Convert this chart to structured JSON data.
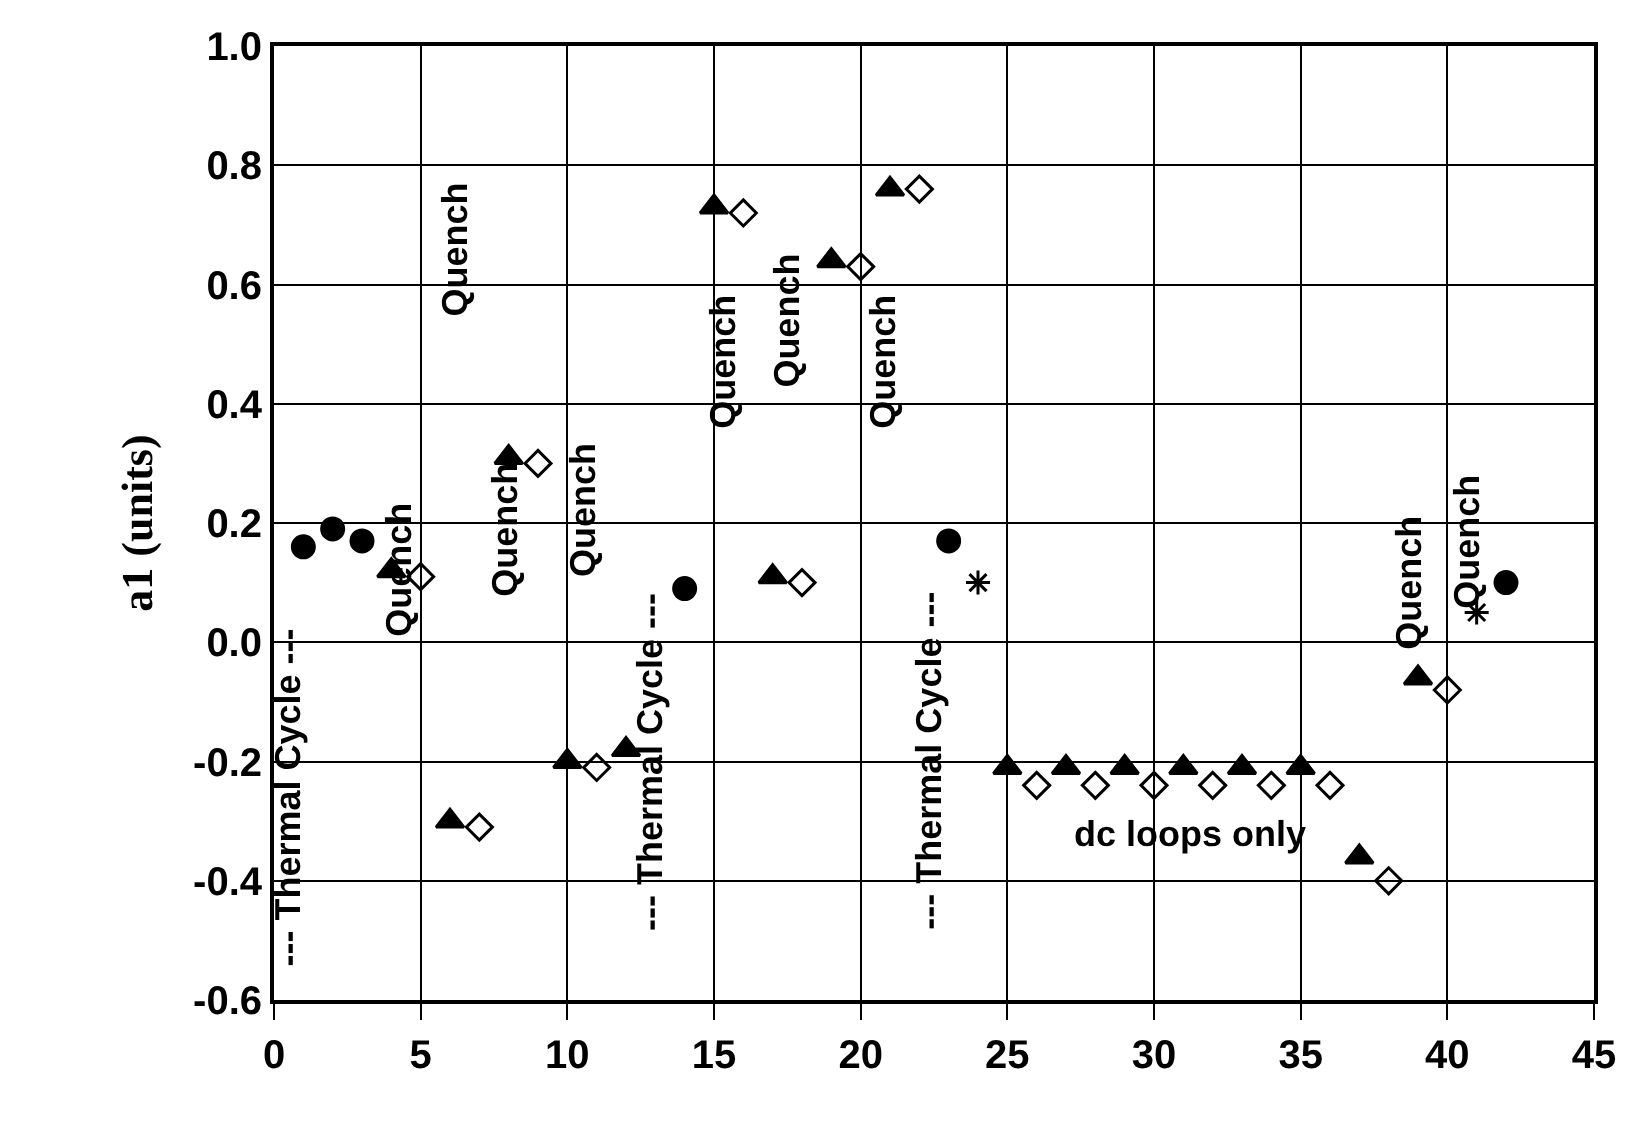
{
  "chart_data": {
    "type": "scatter",
    "ylabel": "a1 (units)",
    "xlim": [
      0,
      45
    ],
    "xticks": [
      0,
      5,
      10,
      15,
      20,
      25,
      30,
      35,
      40,
      45
    ],
    "ylim": [
      -0.6,
      1.0
    ],
    "yticks": [
      {
        "value": -0.6,
        "label": "-0.6"
      },
      {
        "value": -0.4,
        "label": "-0.4"
      },
      {
        "value": -0.2,
        "label": "-0.2"
      },
      {
        "value": 0,
        "label": "0.0"
      },
      {
        "value": 0.2,
        "label": "0.2"
      },
      {
        "value": 0.4,
        "label": "0.4"
      },
      {
        "value": 0.6,
        "label": "0.6"
      },
      {
        "value": 0.8,
        "label": "0.8"
      },
      {
        "value": 1.0,
        "label": "1.0"
      }
    ],
    "grid": true,
    "series": [
      {
        "marker": "circle",
        "color": "#000000",
        "x": [
          1,
          2,
          3,
          14,
          23,
          42
        ],
        "values": [
          0.16,
          0.19,
          0.17,
          0.09,
          0.17,
          0.1
        ]
      },
      {
        "marker": "triangle",
        "color": "#000000",
        "x": [
          4,
          6,
          8,
          10,
          12,
          15,
          17,
          19,
          21,
          25,
          27,
          29,
          31,
          33,
          35,
          37,
          39
        ],
        "values": [
          0.12,
          -0.3,
          0.31,
          -0.2,
          -0.18,
          0.73,
          0.11,
          0.64,
          0.76,
          -0.21,
          -0.21,
          -0.21,
          -0.21,
          -0.21,
          -0.21,
          -0.36,
          -0.06
        ]
      },
      {
        "marker": "diamond",
        "color": "#000000",
        "x": [
          5,
          7,
          9,
          11,
          16,
          18,
          20,
          22,
          26,
          28,
          30,
          32,
          34,
          36,
          38,
          40
        ],
        "values": [
          0.11,
          -0.31,
          0.3,
          -0.21,
          0.72,
          0.1,
          0.63,
          0.76,
          -0.24,
          -0.24,
          -0.24,
          -0.24,
          -0.24,
          -0.24,
          -0.4,
          -0.08
        ]
      },
      {
        "marker": "cross",
        "color": "#000000",
        "x": [
          24,
          41
        ],
        "values": [
          0.1,
          0.05
        ]
      }
    ],
    "annotations": [
      "--- Thermal Cycle ---",
      "Quench",
      "Quench",
      "Quench",
      "Quench",
      "--- Thermal Cycle ---",
      "Quench",
      "Quench",
      "Quench",
      "--- Thermal Cycle ---",
      "dc loops only",
      "Quench",
      "Quench"
    ]
  }
}
